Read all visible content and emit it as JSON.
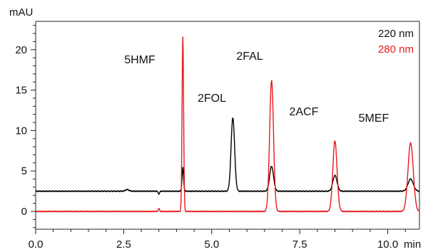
{
  "chart_data": {
    "type": "line",
    "ylabel": "mAU",
    "xlabel": "min",
    "xlim": [
      0,
      10.9
    ],
    "ylim": [
      -2.2,
      23.5
    ],
    "x_ticks": [
      0.0,
      2.5,
      5.0,
      7.5,
      10.0
    ],
    "x_tick_labels": [
      "0.0",
      "2.5",
      "5.0",
      "7.5",
      "10.0"
    ],
    "y_ticks": [
      0,
      5,
      10,
      15,
      20
    ],
    "y_tick_labels": [
      "0",
      "5",
      "10",
      "15",
      "20"
    ],
    "grid": false,
    "legend_position": "top-right",
    "series": [
      {
        "name": "220 nm",
        "color": "#000000",
        "baseline": 2.5,
        "x": [
          0.0,
          2.55,
          2.6,
          2.65,
          3.45,
          3.5,
          3.55,
          4.1,
          4.15,
          4.2,
          5.55,
          5.6,
          5.65,
          6.65,
          6.7,
          6.75,
          8.45,
          8.5,
          8.55,
          10.6,
          10.65,
          10.7,
          10.9
        ],
        "y": [
          2.5,
          2.6,
          2.7,
          2.6,
          2.3,
          2.15,
          2.3,
          3.8,
          5.4,
          3.9,
          10.0,
          11.6,
          10.2,
          5.0,
          5.6,
          5.1,
          4.0,
          4.4,
          4.1,
          3.8,
          4.0,
          3.8,
          2.5
        ],
        "peaks": [
          {
            "t": 2.6,
            "h": 0.2,
            "w": 0.05
          },
          {
            "t": 3.5,
            "h": -0.35,
            "w": 0.02
          },
          {
            "t": 4.18,
            "h": 2.9,
            "w": 0.022
          },
          {
            "t": 5.6,
            "h": 9.1,
            "w": 0.05
          },
          {
            "t": 6.7,
            "h": 3.1,
            "w": 0.055
          },
          {
            "t": 8.5,
            "h": 1.95,
            "w": 0.06
          },
          {
            "t": 10.65,
            "h": 1.5,
            "w": 0.075
          }
        ]
      },
      {
        "name": "280 nm",
        "color": "#e8191e",
        "baseline": 0.0,
        "x": [
          0.0,
          3.5,
          4.15,
          4.2,
          4.25,
          6.65,
          6.7,
          6.75,
          8.45,
          8.5,
          8.55,
          10.6,
          10.65,
          10.7,
          10.9
        ],
        "y": [
          0.0,
          0.35,
          18.0,
          21.6,
          17.0,
          14.0,
          16.2,
          14.5,
          7.5,
          8.7,
          7.6,
          7.4,
          8.5,
          7.5,
          0.0
        ],
        "peaks": [
          {
            "t": 3.5,
            "h": 0.35,
            "w": 0.02
          },
          {
            "t": 4.18,
            "h": 21.6,
            "w": 0.022
          },
          {
            "t": 6.7,
            "h": 16.2,
            "w": 0.055
          },
          {
            "t": 8.5,
            "h": 8.7,
            "w": 0.06
          },
          {
            "t": 10.65,
            "h": 8.5,
            "w": 0.075
          }
        ]
      }
    ],
    "annotations": [
      {
        "text": "5HMF",
        "x": 4.18
      },
      {
        "text": "2FOL",
        "x": 5.6
      },
      {
        "text": "2FAL",
        "x": 6.7
      },
      {
        "text": "2ACF",
        "x": 8.5
      },
      {
        "text": "5MEF",
        "x": 10.65
      }
    ]
  }
}
